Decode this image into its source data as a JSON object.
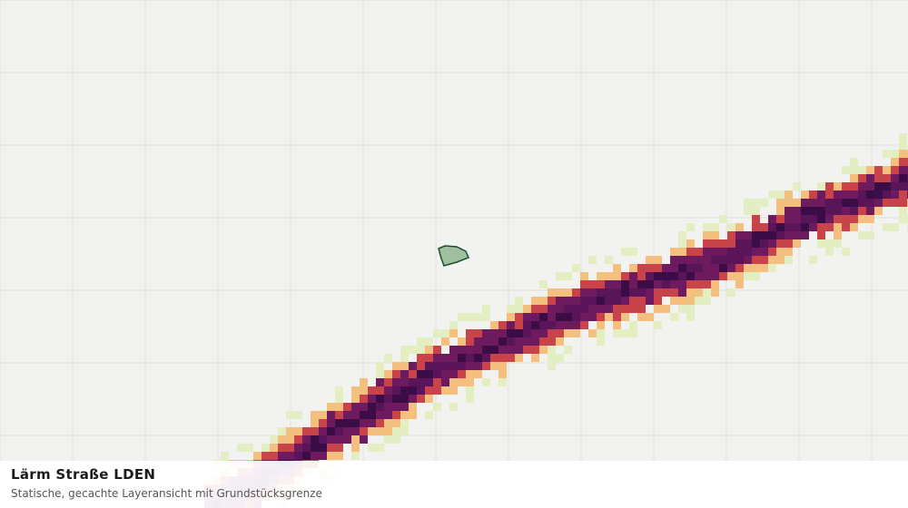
{
  "legend": {
    "title": "Lärm Straße LDEN",
    "subtitle": "Statische, gecachte Layeransicht mit Grundstücksgrenze"
  }
}
